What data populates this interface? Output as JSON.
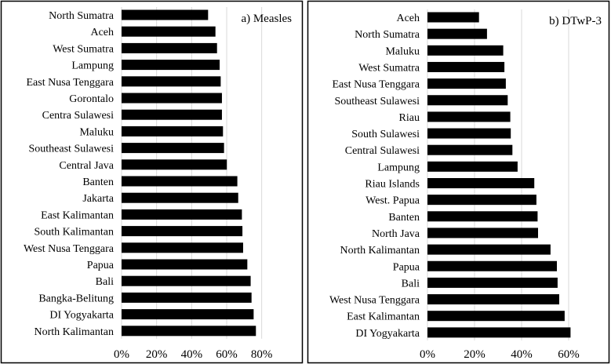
{
  "chart_data": [
    {
      "type": "bar",
      "orientation": "horizontal",
      "title": "a) Measles",
      "categories": [
        "North Sumatra",
        "Aceh",
        "West Sumatra",
        "Lampung",
        "East Nusa Tenggara",
        "Gorontalo",
        "Centra Sulawesi",
        "Maluku",
        "Southeast Sulawesi",
        "Central Java",
        "Banten",
        "Jakarta",
        "East Kalimantan",
        "South Kalimantan",
        "West Nusa Tenggara",
        "Papua",
        "Bali",
        "Bangka-Belitung",
        "DI Yogyakarta",
        "North Kalimantan"
      ],
      "values": [
        49.4,
        53.6,
        54.5,
        56.0,
        56.6,
        57.3,
        57.3,
        57.9,
        58.5,
        60.1,
        66.1,
        66.6,
        68.7,
        69.0,
        69.4,
        71.8,
        73.7,
        74.2,
        75.4,
        76.7
      ],
      "xticks": [
        "0%",
        "20%",
        "40%",
        "60%",
        "80%"
      ],
      "xlim": [
        0,
        80
      ],
      "grid": true,
      "color": "#000000"
    },
    {
      "type": "bar",
      "orientation": "horizontal",
      "title": "b) DTwP-3",
      "categories": [
        "Aceh",
        "North Sumatra",
        "Maluku",
        "West Sumatra",
        "East Nusa Tenggara",
        "Southeast Sulawesi",
        "Riau",
        "South Sulawesi",
        "Central Sulawesi",
        "Lampung",
        "Riau Islands",
        "West. Papua",
        "Banten",
        "North Java",
        "North Kalimantan",
        "Papua",
        "Bali",
        "West Nusa Tenggara",
        "East Kalimantan",
        "DI Yogyakarta"
      ],
      "values": [
        21.9,
        25.3,
        32.2,
        32.7,
        33.3,
        34.1,
        35.2,
        35.4,
        36.1,
        38.3,
        45.4,
        46.3,
        46.8,
        47.0,
        52.3,
        55.0,
        55.3,
        56.0,
        58.3,
        60.8
      ],
      "xticks": [
        "0%",
        "20%",
        "40%",
        "60%"
      ],
      "xlim": [
        0,
        60
      ],
      "grid": true,
      "color": "#000000"
    }
  ]
}
